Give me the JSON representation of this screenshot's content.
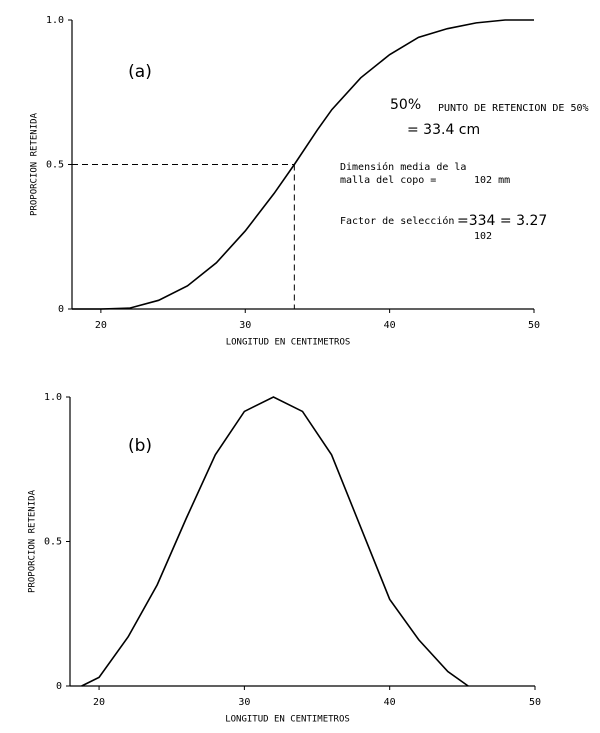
{
  "chart_data": [
    {
      "type": "line",
      "label": "(a)",
      "xlabel": "LONGITUD EN CENTIMETROS",
      "ylabel": "PROPORCION RETENIDA",
      "x": [
        18,
        20,
        22,
        24,
        26,
        28,
        30,
        32,
        33.4,
        35,
        36,
        38,
        40,
        42,
        44,
        46,
        48,
        50
      ],
      "series": [
        {
          "color": "#000000",
          "values": [
            0,
            0,
            0.003,
            0.03,
            0.08,
            0.16,
            0.27,
            0.4,
            0.5,
            0.62,
            0.69,
            0.8,
            0.88,
            0.94,
            0.97,
            0.99,
            1,
            1
          ]
        }
      ],
      "reference": {
        "x": 33.4,
        "y": 0.5
      },
      "annotations": [
        "50%",
        "PUNTO DE RETENCION DE 50%",
        "= 33.4 cm",
        "Dimensión media de la",
        "malla del copo =",
        "102 mm",
        "Factor de selección",
        "=334 = 3.27",
        "102"
      ],
      "xlim": [
        18,
        50
      ],
      "xticks": [
        20,
        30,
        40,
        50
      ],
      "ylim": [
        0,
        1
      ],
      "yticks": [
        0,
        0.5,
        {
          "value": 1,
          "label": "1.0"
        }
      ]
    },
    {
      "type": "line",
      "label": "(b)",
      "xlabel": "LONGITUD EN CENTIMETROS",
      "ylabel": "PROPORCION RETENIDA",
      "x": [
        18.8,
        20,
        22,
        24,
        26,
        28,
        30,
        32,
        34,
        36,
        38,
        40,
        42,
        44,
        45.4
      ],
      "series": [
        {
          "color": "#000000",
          "values": [
            0,
            0.03,
            0.17,
            0.35,
            0.58,
            0.8,
            0.95,
            1,
            0.95,
            0.8,
            0.55,
            0.3,
            0.16,
            0.05,
            0
          ]
        }
      ],
      "xlim": [
        18,
        50
      ],
      "xticks": [
        20,
        30,
        40,
        50
      ],
      "ylim": [
        0,
        1
      ],
      "yticks": [
        0,
        0.5,
        {
          "value": 1,
          "label": "1.0"
        }
      ]
    }
  ]
}
